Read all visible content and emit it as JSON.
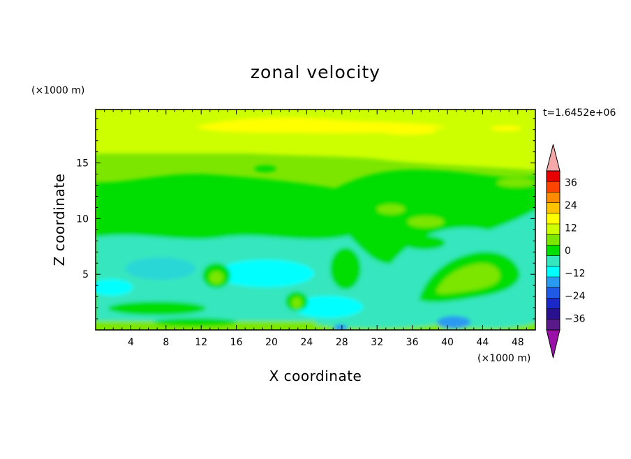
{
  "chart_data": {
    "type": "heatmap",
    "title": "zonal velocity",
    "xlabel": "X coordinate",
    "ylabel": "Z coordinate",
    "x_unit": "(×1000 m)",
    "y_unit": "(×1000 m)",
    "time_label": "t=1.6452e+06",
    "xlim": [
      0,
      50
    ],
    "ylim": [
      0,
      19.8
    ],
    "x_ticks": [
      "4",
      "8",
      "12",
      "16",
      "20",
      "24",
      "28",
      "32",
      "36",
      "40",
      "44",
      "48"
    ],
    "y_ticks": [
      "5",
      "10",
      "15"
    ],
    "colorbar": {
      "ticks": [
        "36",
        "24",
        "12",
        "0",
        "−12",
        "−24",
        "−36"
      ],
      "tick_values": [
        36,
        24,
        12,
        0,
        -12,
        -24,
        -36
      ],
      "range": [
        -42,
        42
      ],
      "step": 6,
      "colors": [
        "#5a1a8a",
        "#28108e",
        "#1a28c8",
        "#1e5ae6",
        "#2a9af0",
        "#00ffff",
        "#36e6be",
        "#00dd00",
        "#7ce600",
        "#cdff00",
        "#ffff00",
        "#ffc200",
        "#ff8c00",
        "#ff4400",
        "#e60000"
      ],
      "under_color": "#9b10a8",
      "over_color": "#f5a8a8"
    },
    "field_description": "zonal velocity contours over X (0–50 ×1000 m) and Z (0–19.8 ×1000 m)"
  }
}
